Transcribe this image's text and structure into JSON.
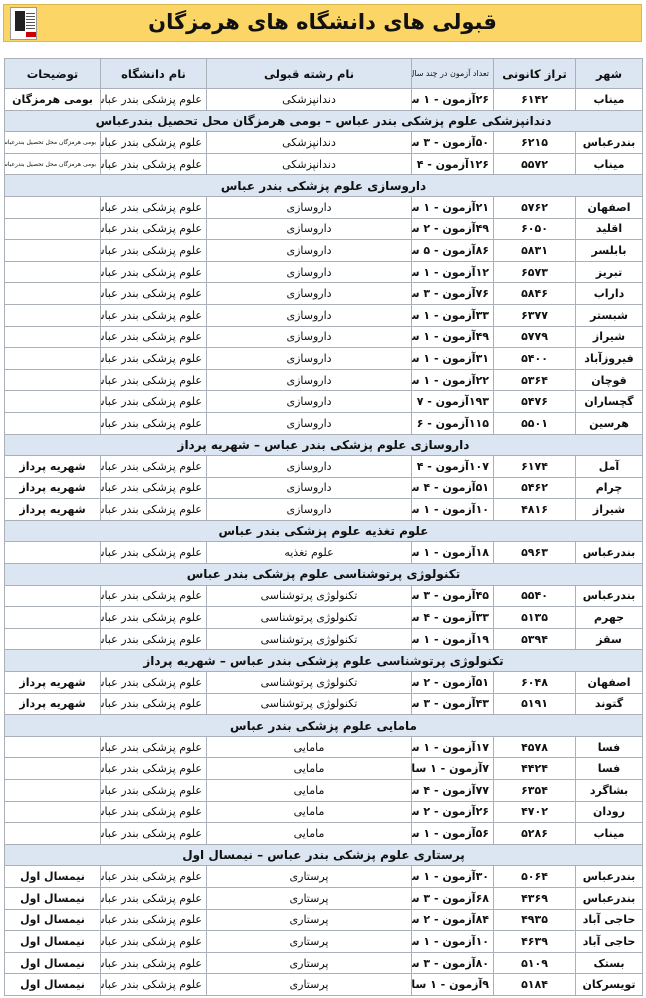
{
  "title": "قبولی های دانشگاه های هرمزگان",
  "accent_color": "#fbd565",
  "header_color": "#dce6f2",
  "columns": [
    "شهر",
    "تراز کانونی",
    "تعداد آزمون در چند سال",
    "نام رشته قبولی",
    "نام دانشگاه",
    "توضیحات"
  ],
  "rows": [
    {
      "type": "data",
      "city": "میناب",
      "score": "۶۱۴۲",
      "exams": "۲۶آزمون - ۱ سال",
      "major": "دندانپزشکی",
      "uni": "علوم پزشکی بندر عباس",
      "notes": "بومی هرمزگان"
    },
    {
      "type": "section",
      "label": "دندانپزشکی علوم پزشکی بندر عباس – بومی هرمزگان محل تحصیل بندرعباس"
    },
    {
      "type": "data",
      "city": "بندرعباس",
      "score": "۶۲۱۵",
      "exams": "۵۰آزمون - ۳ سال",
      "major": "دندانپزشکی",
      "uni": "علوم پزشکی بندر عباس",
      "notes": "بومی هرمزگان محل تحصیل بندرعباس",
      "small": true
    },
    {
      "type": "data",
      "city": "میناب",
      "score": "۵۵۷۲",
      "exams": "۱۲۶آزمون - ۴ سال",
      "major": "دندانپزشکی",
      "uni": "علوم پزشکی بندر عباس",
      "notes": "بومی هرمزگان محل تحصیل بندرعباس",
      "small": true
    },
    {
      "type": "section",
      "label": "داروسازی علوم پزشکی بندر عباس"
    },
    {
      "type": "data",
      "city": "اصفهان",
      "score": "۵۷۶۲",
      "exams": "۲۱آزمون - ۱ سال",
      "major": "داروسازی",
      "uni": "علوم پزشکی بندر عباس",
      "notes": ""
    },
    {
      "type": "data",
      "city": "اقلید",
      "score": "۶۰۵۰",
      "exams": "۴۹آزمون - ۲ سال",
      "major": "داروسازی",
      "uni": "علوم پزشکی بندر عباس",
      "notes": ""
    },
    {
      "type": "data",
      "city": "بابلسر",
      "score": "۵۸۳۱",
      "exams": "۸۶آزمون - ۵ سال",
      "major": "داروسازی",
      "uni": "علوم پزشکی بندر عباس",
      "notes": ""
    },
    {
      "type": "data",
      "city": "تبریز",
      "score": "۶۵۷۳",
      "exams": "۱۲آزمون - ۱ سال",
      "major": "داروسازی",
      "uni": "علوم پزشکی بندر عباس",
      "notes": ""
    },
    {
      "type": "data",
      "city": "داراب",
      "score": "۵۸۴۶",
      "exams": "۷۶آزمون - ۳ سال",
      "major": "داروسازی",
      "uni": "علوم پزشکی بندر عباس",
      "notes": ""
    },
    {
      "type": "data",
      "city": "شبستر",
      "score": "۶۳۷۷",
      "exams": "۳۳آزمون - ۱ سال",
      "major": "داروسازی",
      "uni": "علوم پزشکی بندر عباس",
      "notes": ""
    },
    {
      "type": "data",
      "city": "شیراز",
      "score": "۵۷۷۹",
      "exams": "۴۹آزمون - ۱ سال",
      "major": "داروسازی",
      "uni": "علوم پزشکی بندر عباس",
      "notes": ""
    },
    {
      "type": "data",
      "city": "فیروزآباد",
      "score": "۵۴۰۰",
      "exams": "۳۱آزمون - ۱ سال",
      "major": "داروسازی",
      "uni": "علوم پزشکی بندر عباس",
      "notes": ""
    },
    {
      "type": "data",
      "city": "قوچان",
      "score": "۵۳۶۴",
      "exams": "۲۲آزمون - ۱ سال",
      "major": "داروسازی",
      "uni": "علوم پزشکی بندر عباس",
      "notes": ""
    },
    {
      "type": "data",
      "city": "گچساران",
      "score": "۵۴۷۶",
      "exams": "۱۹۳آزمون - ۷ سال",
      "major": "داروسازی",
      "uni": "علوم پزشکی بندر عباس",
      "notes": ""
    },
    {
      "type": "data",
      "city": "هرسین",
      "score": "۵۵۰۱",
      "exams": "۱۱۵آزمون - ۶ سال",
      "major": "داروسازی",
      "uni": "علوم پزشکی بندر عباس",
      "notes": ""
    },
    {
      "type": "section",
      "label": "داروسازی علوم پزشکی بندر عباس – شهریه پرداز"
    },
    {
      "type": "data",
      "city": "آمل",
      "score": "۶۱۷۴",
      "exams": "۱۰۷آزمون - ۴ سال",
      "major": "داروسازی",
      "uni": "علوم پزشکی بندر عباس",
      "notes": "شهریه پرداز"
    },
    {
      "type": "data",
      "city": "چرام",
      "score": "۵۴۶۲",
      "exams": "۵۱آزمون - ۴ سال",
      "major": "داروسازی",
      "uni": "علوم پزشکی بندر عباس",
      "notes": "شهریه پرداز"
    },
    {
      "type": "data",
      "city": "شیراز",
      "score": "۴۸۱۶",
      "exams": "۱۰آزمون - ۱ سال",
      "major": "داروسازی",
      "uni": "علوم پزشکی بندر عباس",
      "notes": "شهریه پرداز"
    },
    {
      "type": "section",
      "label": "علوم تغذیه علوم پزشکی بندر عباس"
    },
    {
      "type": "data",
      "city": "بندرعباس",
      "score": "۵۹۶۳",
      "exams": "۱۸آزمون - ۱ سال",
      "major": "علوم تغذیه",
      "uni": "علوم پزشکی بندر عباس",
      "notes": ""
    },
    {
      "type": "section",
      "label": "تکنولوژی پرتوشناسی علوم پزشکی بندر عباس"
    },
    {
      "type": "data",
      "city": "بندرعباس",
      "score": "۵۵۴۰",
      "exams": "۴۵آزمون - ۳ سال",
      "major": "تکنولوژی پرتوشناسی",
      "uni": "علوم پزشکی بندر عباس",
      "notes": ""
    },
    {
      "type": "data",
      "city": "جهرم",
      "score": "۵۱۳۵",
      "exams": "۳۳آزمون - ۴ سال",
      "major": "تکنولوژی پرتوشناسی",
      "uni": "علوم پزشکی بندر عباس",
      "notes": ""
    },
    {
      "type": "data",
      "city": "سقز",
      "score": "۵۳۹۴",
      "exams": "۱۹آزمون - ۱ سال",
      "major": "تکنولوژی پرتوشناسی",
      "uni": "علوم پزشکی بندر عباس",
      "notes": ""
    },
    {
      "type": "section",
      "label": "تکنولوژی پرتوشناسی علوم پزشکی بندر عباس – شهریه پرداز"
    },
    {
      "type": "data",
      "city": "اصفهان",
      "score": "۶۰۴۸",
      "exams": "۵۱آزمون - ۲ سال",
      "major": "تکنولوژی پرتوشناسی",
      "uni": "علوم پزشکی بندر عباس",
      "notes": "شهریه پرداز"
    },
    {
      "type": "data",
      "city": "گتوند",
      "score": "۵۱۹۱",
      "exams": "۴۳آزمون - ۳ سال",
      "major": "تکنولوژی پرتوشناسی",
      "uni": "علوم پزشکی بندر عباس",
      "notes": "شهریه پرداز"
    },
    {
      "type": "section",
      "label": "مامایی علوم پزشکی بندر عباس"
    },
    {
      "type": "data",
      "city": "فسا",
      "score": "۴۵۷۸",
      "exams": "۱۷آزمون - ۱ سال",
      "major": "مامایی",
      "uni": "علوم پزشکی بندر عباس",
      "notes": ""
    },
    {
      "type": "data",
      "city": "فسا",
      "score": "۴۴۲۴",
      "exams": "۷آزمون - ۱ سال",
      "major": "مامایی",
      "uni": "علوم پزشکی بندر عباس",
      "notes": ""
    },
    {
      "type": "data",
      "city": "بشاگرد",
      "score": "۶۳۵۴",
      "exams": "۷۷آزمون - ۴ سال",
      "major": "مامایی",
      "uni": "علوم پزشکی بندر عباس",
      "notes": ""
    },
    {
      "type": "data",
      "city": "رودان",
      "score": "۴۷۰۲",
      "exams": "۲۶آزمون - ۲ سال",
      "major": "مامایی",
      "uni": "علوم پزشکی بندر عباس",
      "notes": ""
    },
    {
      "type": "data",
      "city": "میناب",
      "score": "۵۲۸۶",
      "exams": "۵۶آزمون - ۱ سال",
      "major": "مامایی",
      "uni": "علوم پزشکی بندر عباس",
      "notes": ""
    },
    {
      "type": "section",
      "label": "پرستاری علوم پزشکی بندر عباس – نیمسال اول"
    },
    {
      "type": "data",
      "city": "بندرعباس",
      "score": "۵۰۶۴",
      "exams": "۳۰آزمون - ۱ سال",
      "major": "پرستاری",
      "uni": "علوم پزشکی بندر عباس",
      "notes": "نیمسال اول"
    },
    {
      "type": "data",
      "city": "بندرعباس",
      "score": "۴۳۶۹",
      "exams": "۶۸آزمون - ۳ سال",
      "major": "پرستاری",
      "uni": "علوم پزشکی بندر عباس",
      "notes": "نیمسال اول"
    },
    {
      "type": "data",
      "city": "حاجی آباد",
      "score": "۴۹۳۵",
      "exams": "۸۴آزمون - ۲ سال",
      "major": "پرستاری",
      "uni": "علوم پزشکی بندر عباس",
      "notes": "نیمسال اول"
    },
    {
      "type": "data",
      "city": "حاجی آباد",
      "score": "۴۶۳۹",
      "exams": "۱۰آزمون - ۱ سال",
      "major": "پرستاری",
      "uni": "علوم پزشکی بندر عباس",
      "notes": "نیمسال اول"
    },
    {
      "type": "data",
      "city": "بستک",
      "score": "۵۱۰۹",
      "exams": "۸۰آزمون - ۳ سال",
      "major": "پرستاری",
      "uni": "علوم پزشکی بندر عباس",
      "notes": "نیمسال اول"
    },
    {
      "type": "data",
      "city": "تویسرکان",
      "score": "۵۱۸۴",
      "exams": "۹آزمون - ۱ سال",
      "major": "پرستاری",
      "uni": "علوم پزشکی بندر عباس",
      "notes": "نیمسال اول"
    }
  ]
}
